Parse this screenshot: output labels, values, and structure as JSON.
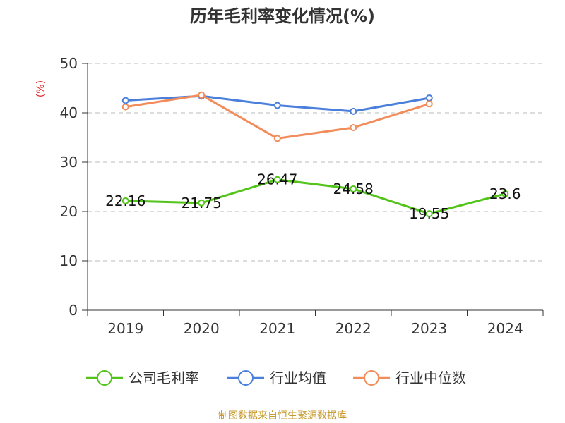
{
  "chart_data": {
    "type": "line",
    "title": "历年毛利率变化情况(%)",
    "xlabel": "",
    "ylabel": "(%)",
    "ylim": [
      0,
      50
    ],
    "yticks": [
      0,
      10,
      20,
      30,
      40,
      50
    ],
    "categories": [
      "2019",
      "2020",
      "2021",
      "2022",
      "2023",
      "2024"
    ],
    "series": [
      {
        "name": "公司毛利率",
        "color": "#52c41a",
        "values": [
          22.16,
          21.75,
          26.47,
          24.58,
          19.55,
          23.6
        ],
        "labels": [
          "22.16",
          "21.75",
          "26.47",
          "24.58",
          "19.55",
          "23.6"
        ]
      },
      {
        "name": "行业均值",
        "color": "#4a7fdb",
        "values": [
          42.5,
          43.4,
          41.5,
          40.3,
          43.0,
          null
        ],
        "labels": []
      },
      {
        "name": "行业中位数",
        "color": "#f28c5a",
        "values": [
          41.2,
          43.6,
          34.8,
          37.0,
          41.8,
          null
        ],
        "labels": []
      }
    ],
    "grid": true,
    "legend_position": "bottom",
    "source": "制图数据来自恒生聚源数据库"
  }
}
